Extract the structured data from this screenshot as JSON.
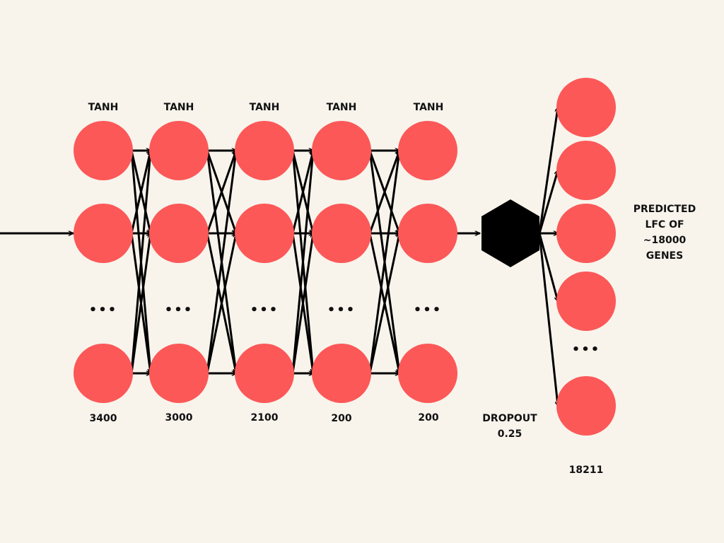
{
  "colors": {
    "background": "#f8f4ec",
    "neuron": "#fc5858",
    "ink": "#000000"
  },
  "layers": [
    {
      "activation": "TANH",
      "size": "3400"
    },
    {
      "activation": "TANH",
      "size": "3000"
    },
    {
      "activation": "TANH",
      "size": "2100"
    },
    {
      "activation": "TANH",
      "size": "200"
    },
    {
      "activation": "TANH",
      "size": "200"
    }
  ],
  "ellipsis": "•••",
  "dropout": {
    "label": "DROPOUT",
    "rate": "0.25",
    "shape": "hexagon"
  },
  "output": {
    "size": "18211",
    "description_lines": [
      "PREDICTED",
      "LFC OF",
      "~18000",
      "GENES"
    ]
  }
}
